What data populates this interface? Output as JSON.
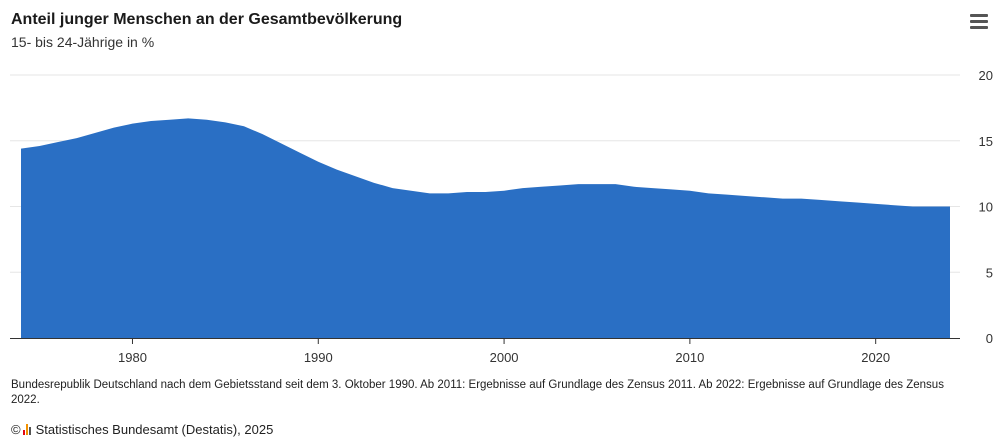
{
  "header": {
    "title": "Anteil junger Menschen an der Gesamtbevölkerung",
    "subtitle": "15- bis 24-Jährige in %"
  },
  "menu": {
    "icon": "hamburger-menu-icon"
  },
  "colors": {
    "area": "#2a6fc4",
    "grid": "#e6e6e6",
    "axis": "#333333"
  },
  "chart_data": {
    "type": "area",
    "x": [
      1974,
      1975,
      1976,
      1977,
      1978,
      1979,
      1980,
      1981,
      1982,
      1983,
      1984,
      1985,
      1986,
      1987,
      1988,
      1989,
      1990,
      1991,
      1992,
      1993,
      1994,
      1995,
      1996,
      1997,
      1998,
      1999,
      2000,
      2001,
      2002,
      2003,
      2004,
      2005,
      2006,
      2007,
      2008,
      2009,
      2010,
      2011,
      2012,
      2013,
      2014,
      2015,
      2016,
      2017,
      2018,
      2019,
      2020,
      2021,
      2022,
      2023,
      2024
    ],
    "values": [
      14.4,
      14.6,
      14.9,
      15.2,
      15.6,
      16.0,
      16.3,
      16.5,
      16.6,
      16.7,
      16.6,
      16.4,
      16.1,
      15.5,
      14.8,
      14.1,
      13.4,
      12.8,
      12.3,
      11.8,
      11.4,
      11.2,
      11.0,
      11.0,
      11.1,
      11.1,
      11.2,
      11.4,
      11.5,
      11.6,
      11.7,
      11.7,
      11.7,
      11.5,
      11.4,
      11.3,
      11.2,
      11.0,
      10.9,
      10.8,
      10.7,
      10.6,
      10.6,
      10.5,
      10.4,
      10.3,
      10.2,
      10.1,
      10.0,
      10.0,
      10.0
    ],
    "xlim": [
      1974,
      2024
    ],
    "ylim": [
      0,
      20
    ],
    "xticks": [
      1980,
      1990,
      2000,
      2010,
      2020
    ],
    "yticks": [
      0,
      5,
      10,
      15,
      20
    ],
    "grid": true,
    "y_axis_position": "right",
    "legend": "none"
  },
  "footer": {
    "note": "Bundesrepublik Deutschland nach dem Gebietsstand seit dem 3. Oktober 1990. Ab 2011: Ergebnisse auf Grundlage des Zensus 2011. Ab 2022: Ergebnisse auf Grundlage des Zensus 2022.",
    "copyright_symbol": "©",
    "source": "Statistisches Bundesamt (Destatis), 2025"
  }
}
